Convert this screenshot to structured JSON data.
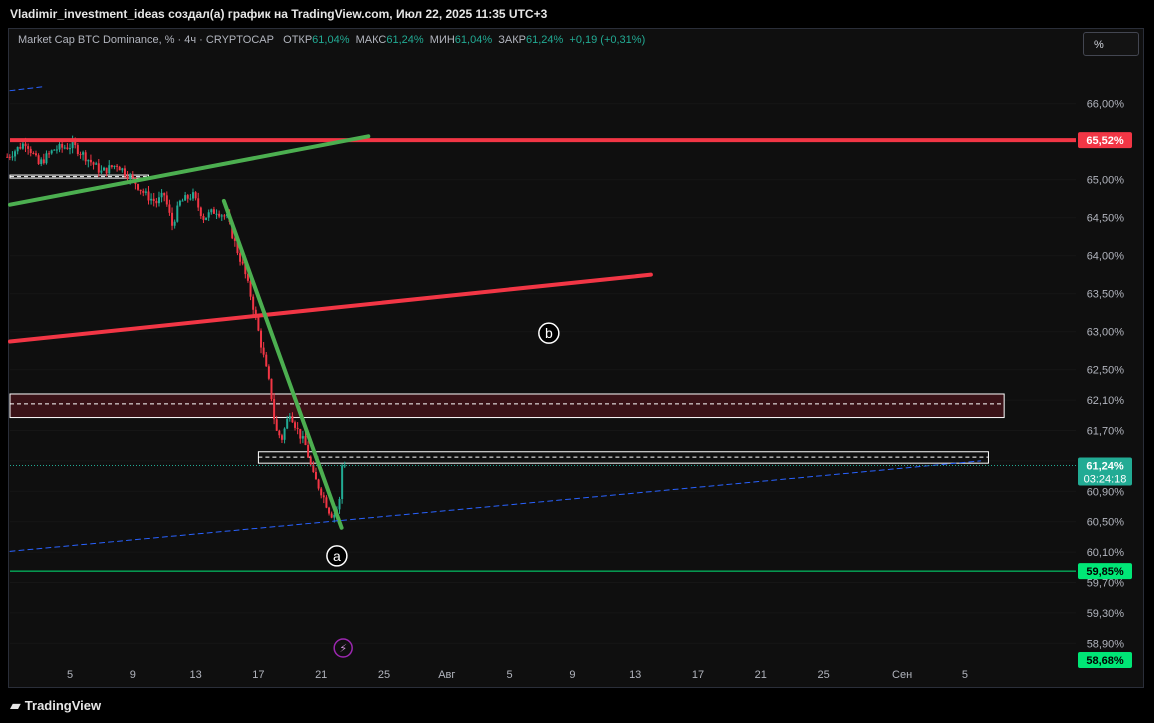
{
  "header": {
    "title": "Vladimir_investment_ideas создал(а) график на TradingView.com, Июл 22, 2025 11:35 UTC+3"
  },
  "legend": {
    "symbol": "Market Cap BTC Dominance, % · 4ч · CRYPTOCAP",
    "open_label": "ОТКР",
    "open_value": "61,04%",
    "high_label": "МАКС",
    "high_value": "61,24%",
    "low_label": "МИН",
    "low_value": "61,04%",
    "close_label": "ЗАКР",
    "close_value": "61,24%",
    "change": "+0,19 (+0,31%)"
  },
  "scale_button": "%",
  "branding": {
    "logo_text": "TradingView",
    "logo_icon": "tradingview-icon"
  },
  "colors": {
    "up": "#22ab94",
    "down": "#f23645",
    "red_level": "#f23645",
    "green_level": "#4caf50",
    "blue_trend": "#2962ff"
  },
  "chart_data": {
    "type": "candlestick",
    "y_unit": "%",
    "ylim": [
      58.72,
      66.6
    ],
    "y_ticks": [
      {
        "v": 66.0,
        "label": "66,00%"
      },
      {
        "v": 65.5,
        "label": "65,50%"
      },
      {
        "v": 65.0,
        "label": "65,00%"
      },
      {
        "v": 64.5,
        "label": "64,50%"
      },
      {
        "v": 64.0,
        "label": "64,00%"
      },
      {
        "v": 63.5,
        "label": "63,50%"
      },
      {
        "v": 63.0,
        "label": "63,00%"
      },
      {
        "v": 62.5,
        "label": "62,50%"
      },
      {
        "v": 62.1,
        "label": "62,10%"
      },
      {
        "v": 61.7,
        "label": "61,70%"
      },
      {
        "v": 61.3,
        "label": "61,30%"
      },
      {
        "v": 60.9,
        "label": "60,90%"
      },
      {
        "v": 60.5,
        "label": "60,50%"
      },
      {
        "v": 60.1,
        "label": "60,10%"
      },
      {
        "v": 59.7,
        "label": "59,70%"
      },
      {
        "v": 59.3,
        "label": "59,30%"
      },
      {
        "v": 58.9,
        "label": "58,90%"
      }
    ],
    "x_ticks": [
      {
        "d": 5,
        "label": "5"
      },
      {
        "d": 9,
        "label": "9"
      },
      {
        "d": 13,
        "label": "13"
      },
      {
        "d": 17,
        "label": "17"
      },
      {
        "d": 21,
        "label": "21"
      },
      {
        "d": 25,
        "label": "25"
      },
      {
        "d": 29,
        "label": "Авг"
      },
      {
        "d": 33,
        "label": "5"
      },
      {
        "d": 37,
        "label": "9"
      },
      {
        "d": 41,
        "label": "13"
      },
      {
        "d": 45,
        "label": "17"
      },
      {
        "d": 49,
        "label": "21"
      },
      {
        "d": 53,
        "label": "25"
      },
      {
        "d": 58,
        "label": "Сен"
      },
      {
        "d": 62,
        "label": "5"
      }
    ],
    "price_badges": [
      {
        "v": 65.52,
        "label": "65,52%",
        "color": "#f23645"
      },
      {
        "v": 61.24,
        "label": "61,24%",
        "sub": "03:24:18",
        "color": "#22ab94"
      },
      {
        "v": 59.85,
        "label": "59,85%",
        "color": "#00e676"
      },
      {
        "v": 58.68,
        "label": "58,68%",
        "color": "#00e676"
      }
    ],
    "close_path": [
      {
        "d": 1.0,
        "v": 65.3
      },
      {
        "d": 2.2,
        "v": 65.5
      },
      {
        "d": 3.0,
        "v": 65.2
      },
      {
        "d": 4.0,
        "v": 65.4
      },
      {
        "d": 5.2,
        "v": 65.45
      },
      {
        "d": 6.0,
        "v": 65.3
      },
      {
        "d": 7.0,
        "v": 65.1
      },
      {
        "d": 8.0,
        "v": 65.2
      },
      {
        "d": 9.0,
        "v": 65.0
      },
      {
        "d": 9.8,
        "v": 64.8
      },
      {
        "d": 10.5,
        "v": 64.7
      },
      {
        "d": 11.0,
        "v": 64.8
      },
      {
        "d": 11.5,
        "v": 64.4
      },
      {
        "d": 12.0,
        "v": 64.7
      },
      {
        "d": 12.8,
        "v": 64.8
      },
      {
        "d": 13.5,
        "v": 64.5
      },
      {
        "d": 14.3,
        "v": 64.6
      },
      {
        "d": 15.0,
        "v": 64.5
      },
      {
        "d": 15.6,
        "v": 64.1
      },
      {
        "d": 16.1,
        "v": 63.8
      },
      {
        "d": 16.6,
        "v": 63.4
      },
      {
        "d": 17.0,
        "v": 63.0
      },
      {
        "d": 17.4,
        "v": 62.6
      },
      {
        "d": 17.8,
        "v": 62.2
      },
      {
        "d": 18.1,
        "v": 61.7
      },
      {
        "d": 18.5,
        "v": 61.6
      },
      {
        "d": 19.0,
        "v": 61.95
      },
      {
        "d": 19.5,
        "v": 61.7
      },
      {
        "d": 20.0,
        "v": 61.5
      },
      {
        "d": 20.5,
        "v": 61.1
      },
      {
        "d": 21.0,
        "v": 60.9
      },
      {
        "d": 21.3,
        "v": 60.75
      },
      {
        "d": 21.6,
        "v": 60.6
      },
      {
        "d": 21.9,
        "v": 60.6
      },
      {
        "d": 22.2,
        "v": 60.8
      },
      {
        "d": 22.5,
        "v": 61.24
      }
    ],
    "annotations": [
      {
        "type": "hline",
        "v": 65.52,
        "color": "#f23645",
        "label": "red horizontal level"
      },
      {
        "type": "hline",
        "v": 59.85,
        "color": "#00e676",
        "label": "green horizontal level"
      },
      {
        "type": "zone",
        "v_top": 62.18,
        "v_bottom": 61.87,
        "mid": 62.05,
        "d_from": 0,
        "d_to": 64.5
      },
      {
        "type": "zone",
        "v_top": 61.42,
        "v_bottom": 61.27,
        "mid": 61.35,
        "d_from": 17.0,
        "d_to": 63.5
      },
      {
        "type": "zone",
        "v_top": 65.06,
        "v_bottom": 65.02,
        "mid": 65.04,
        "d_from": 0,
        "d_to": 10.0
      },
      {
        "type": "trend",
        "color": "#4caf50",
        "from": {
          "d": 0.0,
          "v": 64.67
        },
        "to": {
          "d": 24.0,
          "v": 65.57
        }
      },
      {
        "type": "trend",
        "color": "#f23645",
        "from": {
          "d": 0.0,
          "v": 62.87
        },
        "to": {
          "d": 42.0,
          "v": 63.75
        }
      },
      {
        "type": "trend",
        "color": "#4caf50",
        "from": {
          "d": 14.8,
          "v": 64.72
        },
        "to": {
          "d": 22.3,
          "v": 60.42
        }
      },
      {
        "type": "trend",
        "color": "#2962ff",
        "dashed": true,
        "from": {
          "d": 0.0,
          "v": 60.11
        },
        "to": {
          "d": 63.0,
          "v": 61.3
        }
      },
      {
        "type": "trend",
        "color": "#2962ff",
        "dashed": true,
        "from": {
          "d": 0.0,
          "v": 66.17
        },
        "to": {
          "d": 3.2,
          "v": 66.22
        }
      }
    ],
    "wave_labels": [
      {
        "text": "a",
        "d": 22.0,
        "v": 60.05
      },
      {
        "text": "b",
        "d": 35.5,
        "v": 62.98
      }
    ]
  }
}
